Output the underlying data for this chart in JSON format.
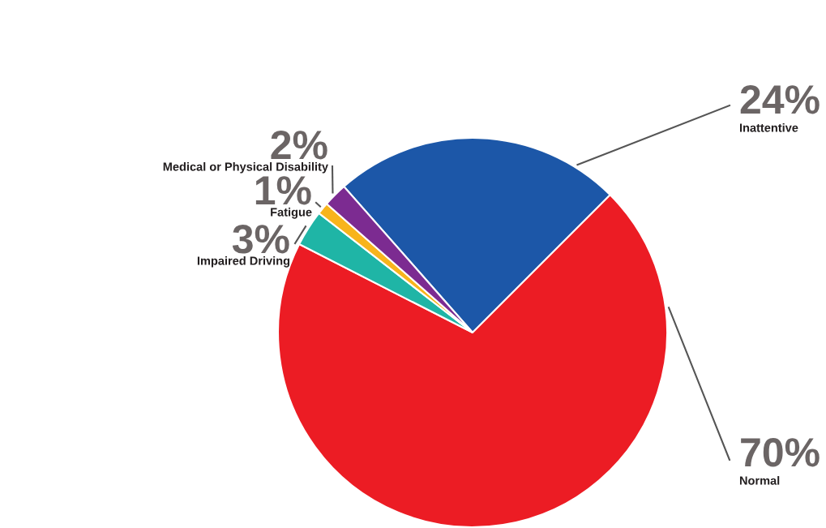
{
  "chart_data": {
    "type": "pie",
    "categories": [
      "Inattentive",
      "Normal",
      "Impaired Driving",
      "Fatigue",
      "Medical or Physical Disability"
    ],
    "values": [
      24,
      70,
      3,
      1,
      2
    ],
    "value_labels": [
      "24%",
      "70%",
      "3%",
      "1%",
      "2%"
    ],
    "colors": [
      "#1c57a8",
      "#ec1c24",
      "#1fb5a6",
      "#f8b41c",
      "#7c2b91"
    ]
  }
}
